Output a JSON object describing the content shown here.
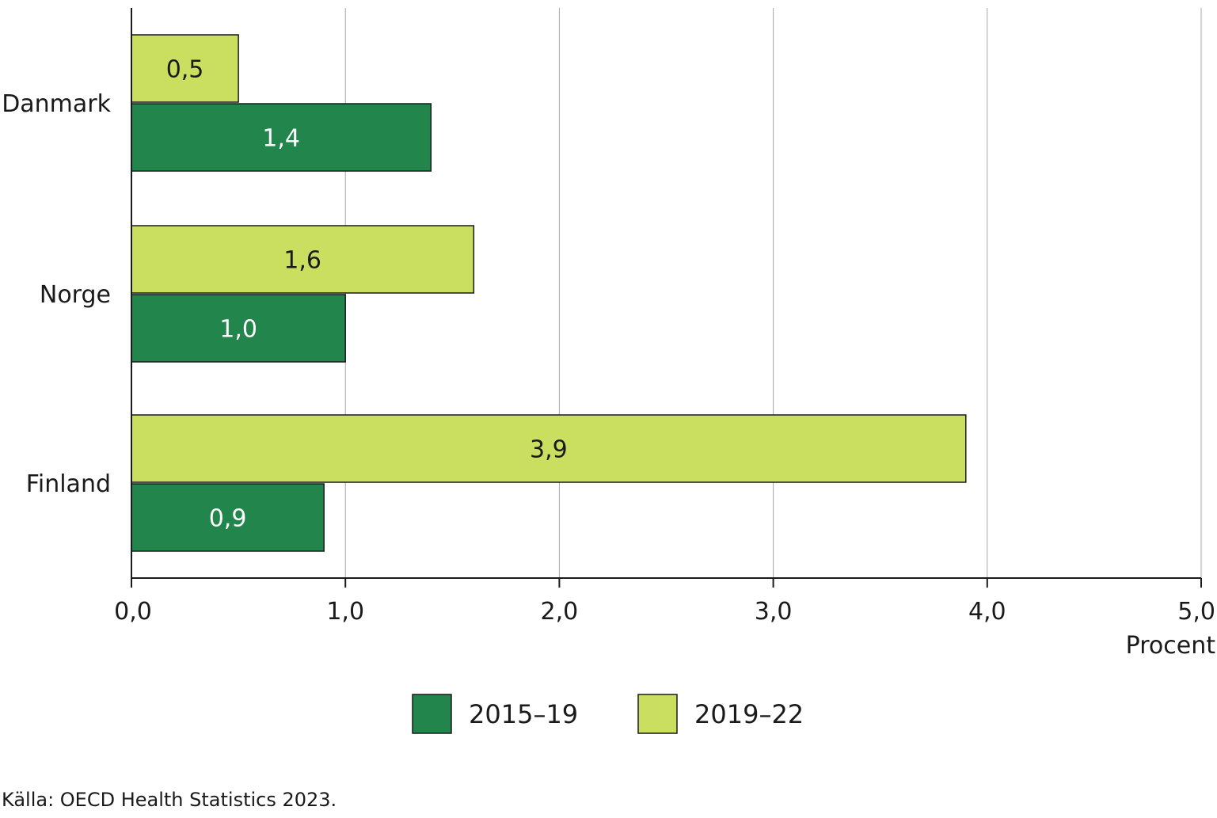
{
  "chart_data": {
    "type": "bar",
    "orientation": "horizontal",
    "categories": [
      "Danmark",
      "Norge",
      "Finland"
    ],
    "series": [
      {
        "name": "2015–19",
        "values": [
          1.4,
          1.0,
          0.9
        ],
        "labels": [
          "1,4",
          "1,0",
          "0,9"
        ],
        "color": "#22854c",
        "label_color": "#ffffff"
      },
      {
        "name": "2019–22",
        "values": [
          0.5,
          1.6,
          3.9
        ],
        "labels": [
          "0,5",
          "1,6",
          "3,9"
        ],
        "color": "#cade60",
        "label_color": "#1a1a1a"
      }
    ],
    "xlim": [
      0,
      5
    ],
    "xticks": [
      0,
      1,
      2,
      3,
      4,
      5
    ],
    "xtick_labels": [
      "0,0",
      "1,0",
      "2,0",
      "3,0",
      "4,0",
      "5,0"
    ],
    "xlabel": "Procent",
    "grid": true,
    "legend_position": "bottom",
    "source": "Källa: OECD Health Statistics 2023."
  }
}
